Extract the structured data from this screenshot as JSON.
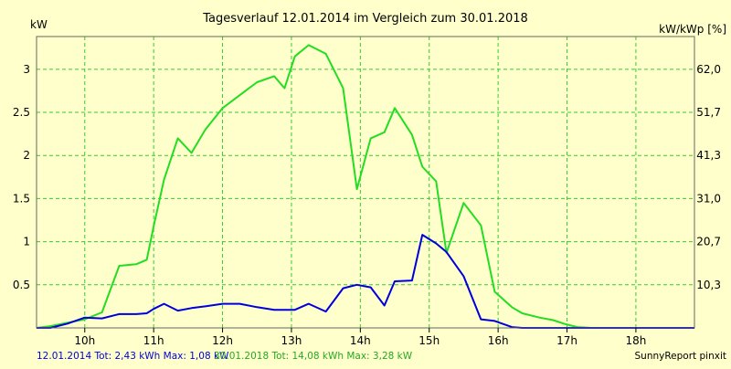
{
  "chart_data": {
    "type": "line",
    "title": "Tagesverlauf 12.01.2014 im Vergleich zum 30.01.2018",
    "ylabel_left": "kW",
    "ylabel_right": "kW/kWp [%]",
    "xlabel": "",
    "x_unit": "hour of day",
    "xlim": [
      9.3,
      18.85
    ],
    "ylim": [
      0,
      3.38
    ],
    "grid": true,
    "legend_position": "bottom-left",
    "x_ticks": [
      {
        "x": 10,
        "label": "10h"
      },
      {
        "x": 11,
        "label": "11h"
      },
      {
        "x": 12,
        "label": "12h"
      },
      {
        "x": 13,
        "label": "13h"
      },
      {
        "x": 14,
        "label": "14h"
      },
      {
        "x": 15,
        "label": "15h"
      },
      {
        "x": 16,
        "label": "16h"
      },
      {
        "x": 17,
        "label": "17h"
      },
      {
        "x": 18,
        "label": "18h"
      }
    ],
    "y_ticks_left": [
      {
        "y": 0.5,
        "label": "0.5"
      },
      {
        "y": 1,
        "label": "1"
      },
      {
        "y": 1.5,
        "label": "1.5"
      },
      {
        "y": 2,
        "label": "2"
      },
      {
        "y": 2.5,
        "label": "2.5"
      },
      {
        "y": 3,
        "label": "3"
      }
    ],
    "y_ticks_right": [
      "10,3",
      "20,7",
      "31,0",
      "41,3",
      "51,7",
      "62,0"
    ],
    "series": [
      {
        "name": "30.01.2018",
        "color": "#22dd22",
        "x": [
          9.3,
          9.5,
          9.75,
          10.0,
          10.25,
          10.5,
          10.75,
          10.9,
          11.0,
          11.15,
          11.35,
          11.55,
          11.75,
          12.0,
          12.25,
          12.5,
          12.75,
          12.9,
          13.05,
          13.25,
          13.5,
          13.75,
          13.95,
          14.15,
          14.35,
          14.5,
          14.75,
          14.9,
          15.1,
          15.25,
          15.5,
          15.75,
          15.95,
          16.2,
          16.35,
          16.6,
          16.8,
          16.95,
          17.15,
          17.35,
          17.55,
          17.8,
          18.0,
          18.25,
          18.5,
          18.85
        ],
        "y": [
          0.0,
          0.02,
          0.06,
          0.1,
          0.18,
          0.72,
          0.74,
          0.79,
          1.18,
          1.72,
          2.2,
          2.03,
          2.3,
          2.55,
          2.7,
          2.85,
          2.92,
          2.78,
          3.15,
          3.28,
          3.18,
          2.78,
          1.61,
          2.2,
          2.27,
          2.55,
          2.24,
          1.87,
          1.7,
          0.87,
          1.45,
          1.19,
          0.42,
          0.24,
          0.17,
          0.12,
          0.09,
          0.05,
          0.01,
          0.0,
          0.0,
          0.0,
          0.0,
          0.0,
          0.0,
          0.0
        ]
      },
      {
        "name": "12.01.2014",
        "color": "#0000dd",
        "x": [
          9.3,
          9.5,
          9.75,
          10.0,
          10.25,
          10.5,
          10.75,
          10.9,
          11.0,
          11.15,
          11.35,
          11.55,
          11.75,
          12.0,
          12.25,
          12.5,
          12.75,
          12.9,
          13.05,
          13.25,
          13.5,
          13.75,
          13.95,
          14.15,
          14.35,
          14.5,
          14.75,
          14.9,
          15.1,
          15.25,
          15.5,
          15.75,
          15.95,
          16.2,
          16.35,
          16.6,
          16.8,
          16.95,
          17.15,
          17.35,
          17.55,
          17.8,
          18.0,
          18.25,
          18.5,
          18.85
        ],
        "y": [
          0.0,
          0.0,
          0.05,
          0.12,
          0.11,
          0.16,
          0.16,
          0.17,
          0.22,
          0.28,
          0.2,
          0.23,
          0.25,
          0.28,
          0.28,
          0.24,
          0.21,
          0.21,
          0.21,
          0.28,
          0.19,
          0.46,
          0.5,
          0.47,
          0.26,
          0.54,
          0.55,
          1.08,
          0.98,
          0.88,
          0.6,
          0.1,
          0.08,
          0.01,
          0.0,
          0.0,
          0.0,
          0.0,
          0.0,
          0.0,
          0.0,
          0.0,
          0.0,
          0.0,
          0.0,
          0.0
        ]
      }
    ]
  },
  "legend": {
    "first": "12.01.2014 Tot: 2,43 kWh Max: 1,08 kW",
    "second": "30.01.2018 Tot: 14,08 kWh Max: 3,28 kW"
  },
  "credit": "SunnyReport pinxit"
}
